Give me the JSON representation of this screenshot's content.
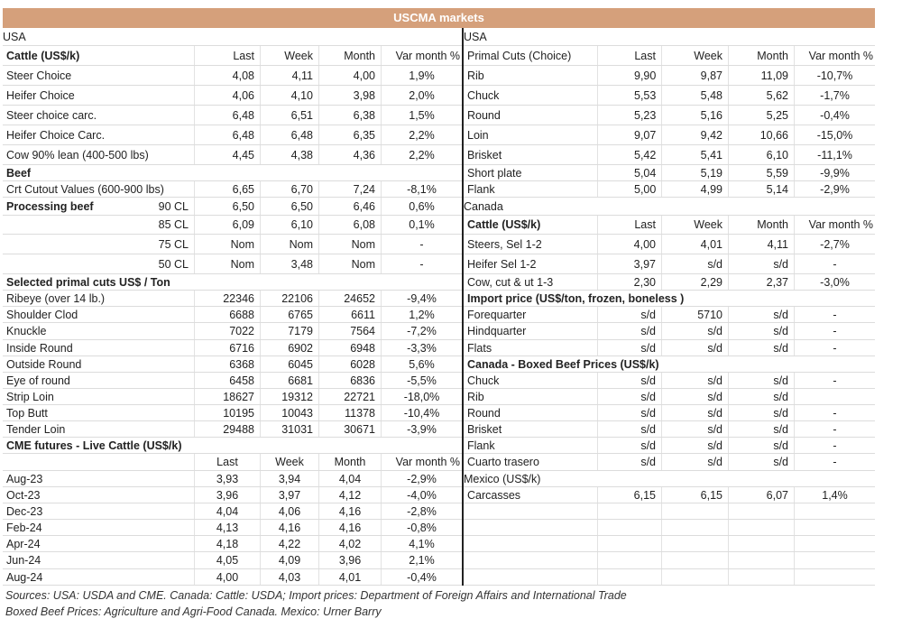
{
  "title": "USCMA markets",
  "colors": {
    "title_bar": "#d5a07b",
    "section_band": "#ecd0bb"
  },
  "left": {
    "rows": [
      {
        "type": "band",
        "label": "USA"
      },
      {
        "type": "header",
        "label": "Cattle (US$/k)",
        "cols": [
          "Last",
          "Week",
          "Month",
          "Var month %"
        ]
      },
      {
        "type": "data",
        "label": "Steer Choice",
        "values": [
          "4,08",
          "4,11",
          "4,00",
          "1,9%"
        ]
      },
      {
        "type": "data",
        "label": "Heifer Choice",
        "values": [
          "4,06",
          "4,10",
          "3,98",
          "2,0%"
        ]
      },
      {
        "type": "data",
        "label": "Steer choice carc.",
        "values": [
          "6,48",
          "6,51",
          "6,38",
          "1,5%"
        ]
      },
      {
        "type": "data",
        "label": "Heifer Choice Carc.",
        "values": [
          "6,48",
          "6,48",
          "6,35",
          "2,2%"
        ]
      },
      {
        "type": "data",
        "label": "Cow 90% lean (400-500 lbs)",
        "values": [
          "4,45",
          "4,38",
          "4,36",
          "2,2%"
        ]
      },
      {
        "type": "section",
        "label": "Beef"
      },
      {
        "type": "data",
        "label": "Crt Cutout Values (600-900 lbs)",
        "values": [
          "6,65",
          "6,70",
          "7,24",
          "-8,1%"
        ]
      },
      {
        "type": "data",
        "label": "Processing beef",
        "bold": true,
        "sub": "90 CL",
        "values": [
          "6,50",
          "6,50",
          "6,46",
          "0,6%"
        ]
      },
      {
        "type": "data",
        "label": "",
        "sub": "85 CL",
        "values": [
          "6,09",
          "6,10",
          "6,08",
          "0,1%"
        ]
      },
      {
        "type": "data",
        "label": "",
        "sub": "75 CL",
        "values": [
          "Nom",
          "Nom",
          "Nom",
          "-"
        ]
      },
      {
        "type": "data",
        "label": "",
        "sub": "50 CL",
        "values": [
          "Nom",
          "3,48",
          "Nom",
          "-"
        ]
      },
      {
        "type": "section",
        "label": "Selected primal cuts US$ / Ton"
      },
      {
        "type": "data",
        "label": "Ribeye (over 14 lb.)",
        "values": [
          "22346",
          "22106",
          "24652",
          "-9,4%"
        ]
      },
      {
        "type": "data",
        "label": "Shoulder Clod",
        "values": [
          "6688",
          "6765",
          "6611",
          "1,2%"
        ]
      },
      {
        "type": "data",
        "label": "Knuckle",
        "values": [
          "7022",
          "7179",
          "7564",
          "-7,2%"
        ]
      },
      {
        "type": "data",
        "label": "Inside Round",
        "values": [
          "6716",
          "6902",
          "6948",
          "-3,3%"
        ]
      },
      {
        "type": "data",
        "label": "Outside Round",
        "values": [
          "6368",
          "6045",
          "6028",
          "5,6%"
        ]
      },
      {
        "type": "data",
        "label": "Eye of round",
        "values": [
          "6458",
          "6681",
          "6836",
          "-5,5%"
        ]
      },
      {
        "type": "data",
        "label": "Strip Loin",
        "values": [
          "18627",
          "19312",
          "22721",
          "-18,0%"
        ]
      },
      {
        "type": "data",
        "label": "Top Butt",
        "values": [
          "10195",
          "10043",
          "11378",
          "-10,4%"
        ]
      },
      {
        "type": "data",
        "label": "Tender Loin",
        "values": [
          "29488",
          "31031",
          "30671",
          "-3,9%"
        ]
      },
      {
        "type": "section",
        "label": "CME futures - Live Cattle (US$/k)"
      },
      {
        "type": "header",
        "label": "",
        "center": true,
        "cols": [
          "Last",
          "Week",
          "Month",
          "Var month %"
        ]
      },
      {
        "type": "data",
        "label": "Aug-23",
        "center": true,
        "values": [
          "3,93",
          "3,94",
          "4,04",
          "-2,9%"
        ]
      },
      {
        "type": "data",
        "label": "Oct-23",
        "center": true,
        "values": [
          "3,96",
          "3,97",
          "4,12",
          "-4,0%"
        ]
      },
      {
        "type": "data",
        "label": "Dec-23",
        "center": true,
        "values": [
          "4,04",
          "4,06",
          "4,16",
          "-2,8%"
        ]
      },
      {
        "type": "data",
        "label": "Feb-24",
        "center": true,
        "values": [
          "4,13",
          "4,16",
          "4,16",
          "-0,8%"
        ]
      },
      {
        "type": "data",
        "label": "Apr-24",
        "center": true,
        "values": [
          "4,18",
          "4,22",
          "4,02",
          "4,1%"
        ]
      },
      {
        "type": "data",
        "label": "Jun-24",
        "center": true,
        "values": [
          "4,05",
          "4,09",
          "3,96",
          "2,1%"
        ]
      },
      {
        "type": "data",
        "label": "Aug-24",
        "center": true,
        "values": [
          "4,00",
          "4,03",
          "4,01",
          "-0,4%"
        ]
      }
    ]
  },
  "right": {
    "rows": [
      {
        "type": "band",
        "label": "USA"
      },
      {
        "type": "header",
        "label": "Primal Cuts (Choice)",
        "plain": true,
        "cols": [
          "Last",
          "Week",
          "Month",
          "Var month %"
        ]
      },
      {
        "type": "data",
        "label": "Rib",
        "left_last": true,
        "values": [
          "9,90",
          "9,87",
          "11,09",
          "-10,7%"
        ]
      },
      {
        "type": "data",
        "label": "Chuck",
        "left_last": true,
        "values": [
          "5,53",
          "5,48",
          "5,62",
          "-1,7%"
        ]
      },
      {
        "type": "data",
        "label": "Round",
        "left_last": true,
        "values": [
          "5,23",
          "5,16",
          "5,25",
          "-0,4%"
        ]
      },
      {
        "type": "data",
        "label": "Loin",
        "left_last": true,
        "values": [
          "9,07",
          "9,42",
          "10,66",
          "-15,0%"
        ]
      },
      {
        "type": "data",
        "label": "Brisket",
        "left_last": true,
        "values": [
          "5,42",
          "5,41",
          "6,10",
          "-11,1%"
        ]
      },
      {
        "type": "data",
        "label": "Short plate",
        "left_last": true,
        "values": [
          "5,04",
          "5,19",
          "5,59",
          "-9,9%"
        ]
      },
      {
        "type": "data",
        "label": "Flank",
        "left_last": true,
        "values": [
          "5,00",
          "4,99",
          "5,14",
          "-2,9%"
        ]
      },
      {
        "type": "band",
        "label": "Canada"
      },
      {
        "type": "header",
        "label": "Cattle (US$/k)",
        "cols": [
          "Last",
          "Week",
          "Month",
          "Var month %"
        ]
      },
      {
        "type": "data",
        "label": "Steers, Sel 1-2",
        "values": [
          "4,00",
          "4,01",
          "4,11",
          "-2,7%"
        ]
      },
      {
        "type": "data",
        "label": "Heifer Sel 1-2",
        "values": [
          "3,97",
          "s/d",
          "s/d",
          "-"
        ]
      },
      {
        "type": "data",
        "label": "Cow, cut & ut 1-3",
        "values": [
          "2,30",
          "2,29",
          "2,37",
          "-3,0%"
        ]
      },
      {
        "type": "section",
        "label": "Import price (US$/ton, frozen, boneless )"
      },
      {
        "type": "data",
        "label": "Forequarter",
        "values": [
          "s/d",
          "5710",
          "s/d",
          "-"
        ]
      },
      {
        "type": "data",
        "label": "Hindquarter",
        "values": [
          "s/d",
          "s/d",
          "s/d",
          "-"
        ]
      },
      {
        "type": "data",
        "label": "Flats",
        "values": [
          "s/d",
          "s/d",
          "s/d",
          "-"
        ]
      },
      {
        "type": "section",
        "label": "Canada - Boxed Beef Prices (US$/k)"
      },
      {
        "type": "data",
        "label": "Chuck",
        "values": [
          "s/d",
          "s/d",
          "s/d",
          "-"
        ]
      },
      {
        "type": "data",
        "label": "Rib",
        "values": [
          "s/d",
          "s/d",
          "s/d",
          ""
        ]
      },
      {
        "type": "data",
        "label": "Round",
        "values": [
          "s/d",
          "s/d",
          "s/d",
          "-"
        ]
      },
      {
        "type": "data",
        "label": "Brisket",
        "values": [
          "s/d",
          "s/d",
          "s/d",
          "-"
        ]
      },
      {
        "type": "data",
        "label": "Flank",
        "values": [
          "s/d",
          "s/d",
          "s/d",
          "-"
        ]
      },
      {
        "type": "data",
        "label": "Cuarto trasero",
        "values": [
          "s/d",
          "s/d",
          "s/d",
          "-"
        ]
      },
      {
        "type": "band",
        "label": "Mexico (US$/k)"
      },
      {
        "type": "data",
        "label": "Carcasses",
        "values": [
          "6,15",
          "6,15",
          "6,07",
          "1,4%"
        ]
      }
    ]
  },
  "sources": [
    "Sources: USA: USDA and CME. Canada: Cattle: USDA; Import prices: Department of Foreign Affairs and International Trade",
    "Boxed Beef Prices: Agriculture and Agri-Food Canada. Mexico: Urner Barry"
  ]
}
